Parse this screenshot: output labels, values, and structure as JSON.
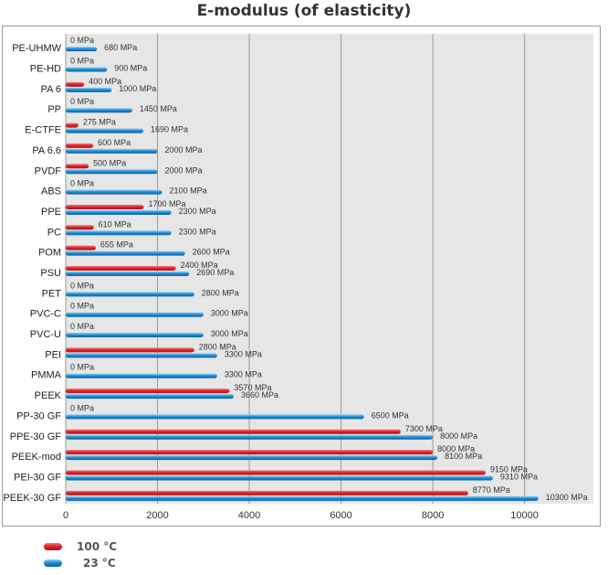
{
  "chart_data": {
    "type": "bar",
    "orientation": "horizontal",
    "title": "E-modulus (of elasticity)",
    "xlabel": "",
    "ylabel": "",
    "xlim": [
      0,
      11500
    ],
    "x_ticks": [
      "0",
      "2000",
      "4000",
      "6000",
      "8000",
      "10000"
    ],
    "unit": "MPa",
    "grid": true,
    "categories": [
      "PE-UHMW",
      "PE-HD",
      "PA 6",
      "PP",
      "E-CTFE",
      "PA 6.6",
      "PVDF",
      "ABS",
      "PPE",
      "PC",
      "POM",
      "PSU",
      "PET",
      "PVC-C",
      "PVC-U",
      "PEI",
      "PMMA",
      "PEEK",
      "PP-30 GF",
      "PPE-30 GF",
      "PEEK-mod",
      "PEI-30 GF",
      "PEEK-30 GF"
    ],
    "series": [
      {
        "name": "100 °C",
        "color": "#e0262b",
        "values": [
          0,
          0,
          400,
          0,
          275,
          600,
          500,
          0,
          1700,
          610,
          655,
          2400,
          0,
          0,
          0,
          2800,
          0,
          3570,
          0,
          7300,
          8000,
          9150,
          8770
        ],
        "labels": [
          "0 MPa",
          "0 MPa",
          "400 MPa",
          "0 MPa",
          "275 MPa",
          "600 MPa",
          "500 MPa",
          "0 MPa",
          "1700 MPa",
          "610 MPa",
          "655 MPa",
          "2400 MPa",
          "0 MPa",
          "0 MPa",
          "0 MPa",
          "2800 MPa",
          "0 MPa",
          "3570 MPa",
          "0 MPa",
          "7300 MPa",
          "8000 MPa",
          "9150 MPa",
          "8770 MPa"
        ]
      },
      {
        "name": "23 °C",
        "color": "#1f8fd8",
        "values": [
          680,
          900,
          1000,
          1450,
          1690,
          2000,
          2000,
          2100,
          2300,
          2300,
          2600,
          2690,
          2800,
          3000,
          3000,
          3300,
          3300,
          3660,
          6500,
          8000,
          8100,
          9310,
          10300
        ],
        "labels": [
          "680 MPa",
          "900 MPa",
          "1000 MPa",
          "1450 MPa",
          "1690 MPa",
          "2000 MPa",
          "2000 MPa",
          "2100 MPa",
          "2300 MPa",
          "2300 MPa",
          "2600 MPa",
          "2690 MPa",
          "2800 MPa",
          "3000 MPa",
          "3000 MPa",
          "3300 MPa",
          "3300 MPa",
          "3660 MPa",
          "6500 MPa",
          "8000 MPa",
          "8100 MPa",
          "9310 MPa",
          "10300 MPa"
        ]
      }
    ],
    "legend": {
      "position": "bottom-left",
      "items": [
        "100 °C",
        "23 °C"
      ]
    },
    "plot_background": "#e6e6e6"
  }
}
